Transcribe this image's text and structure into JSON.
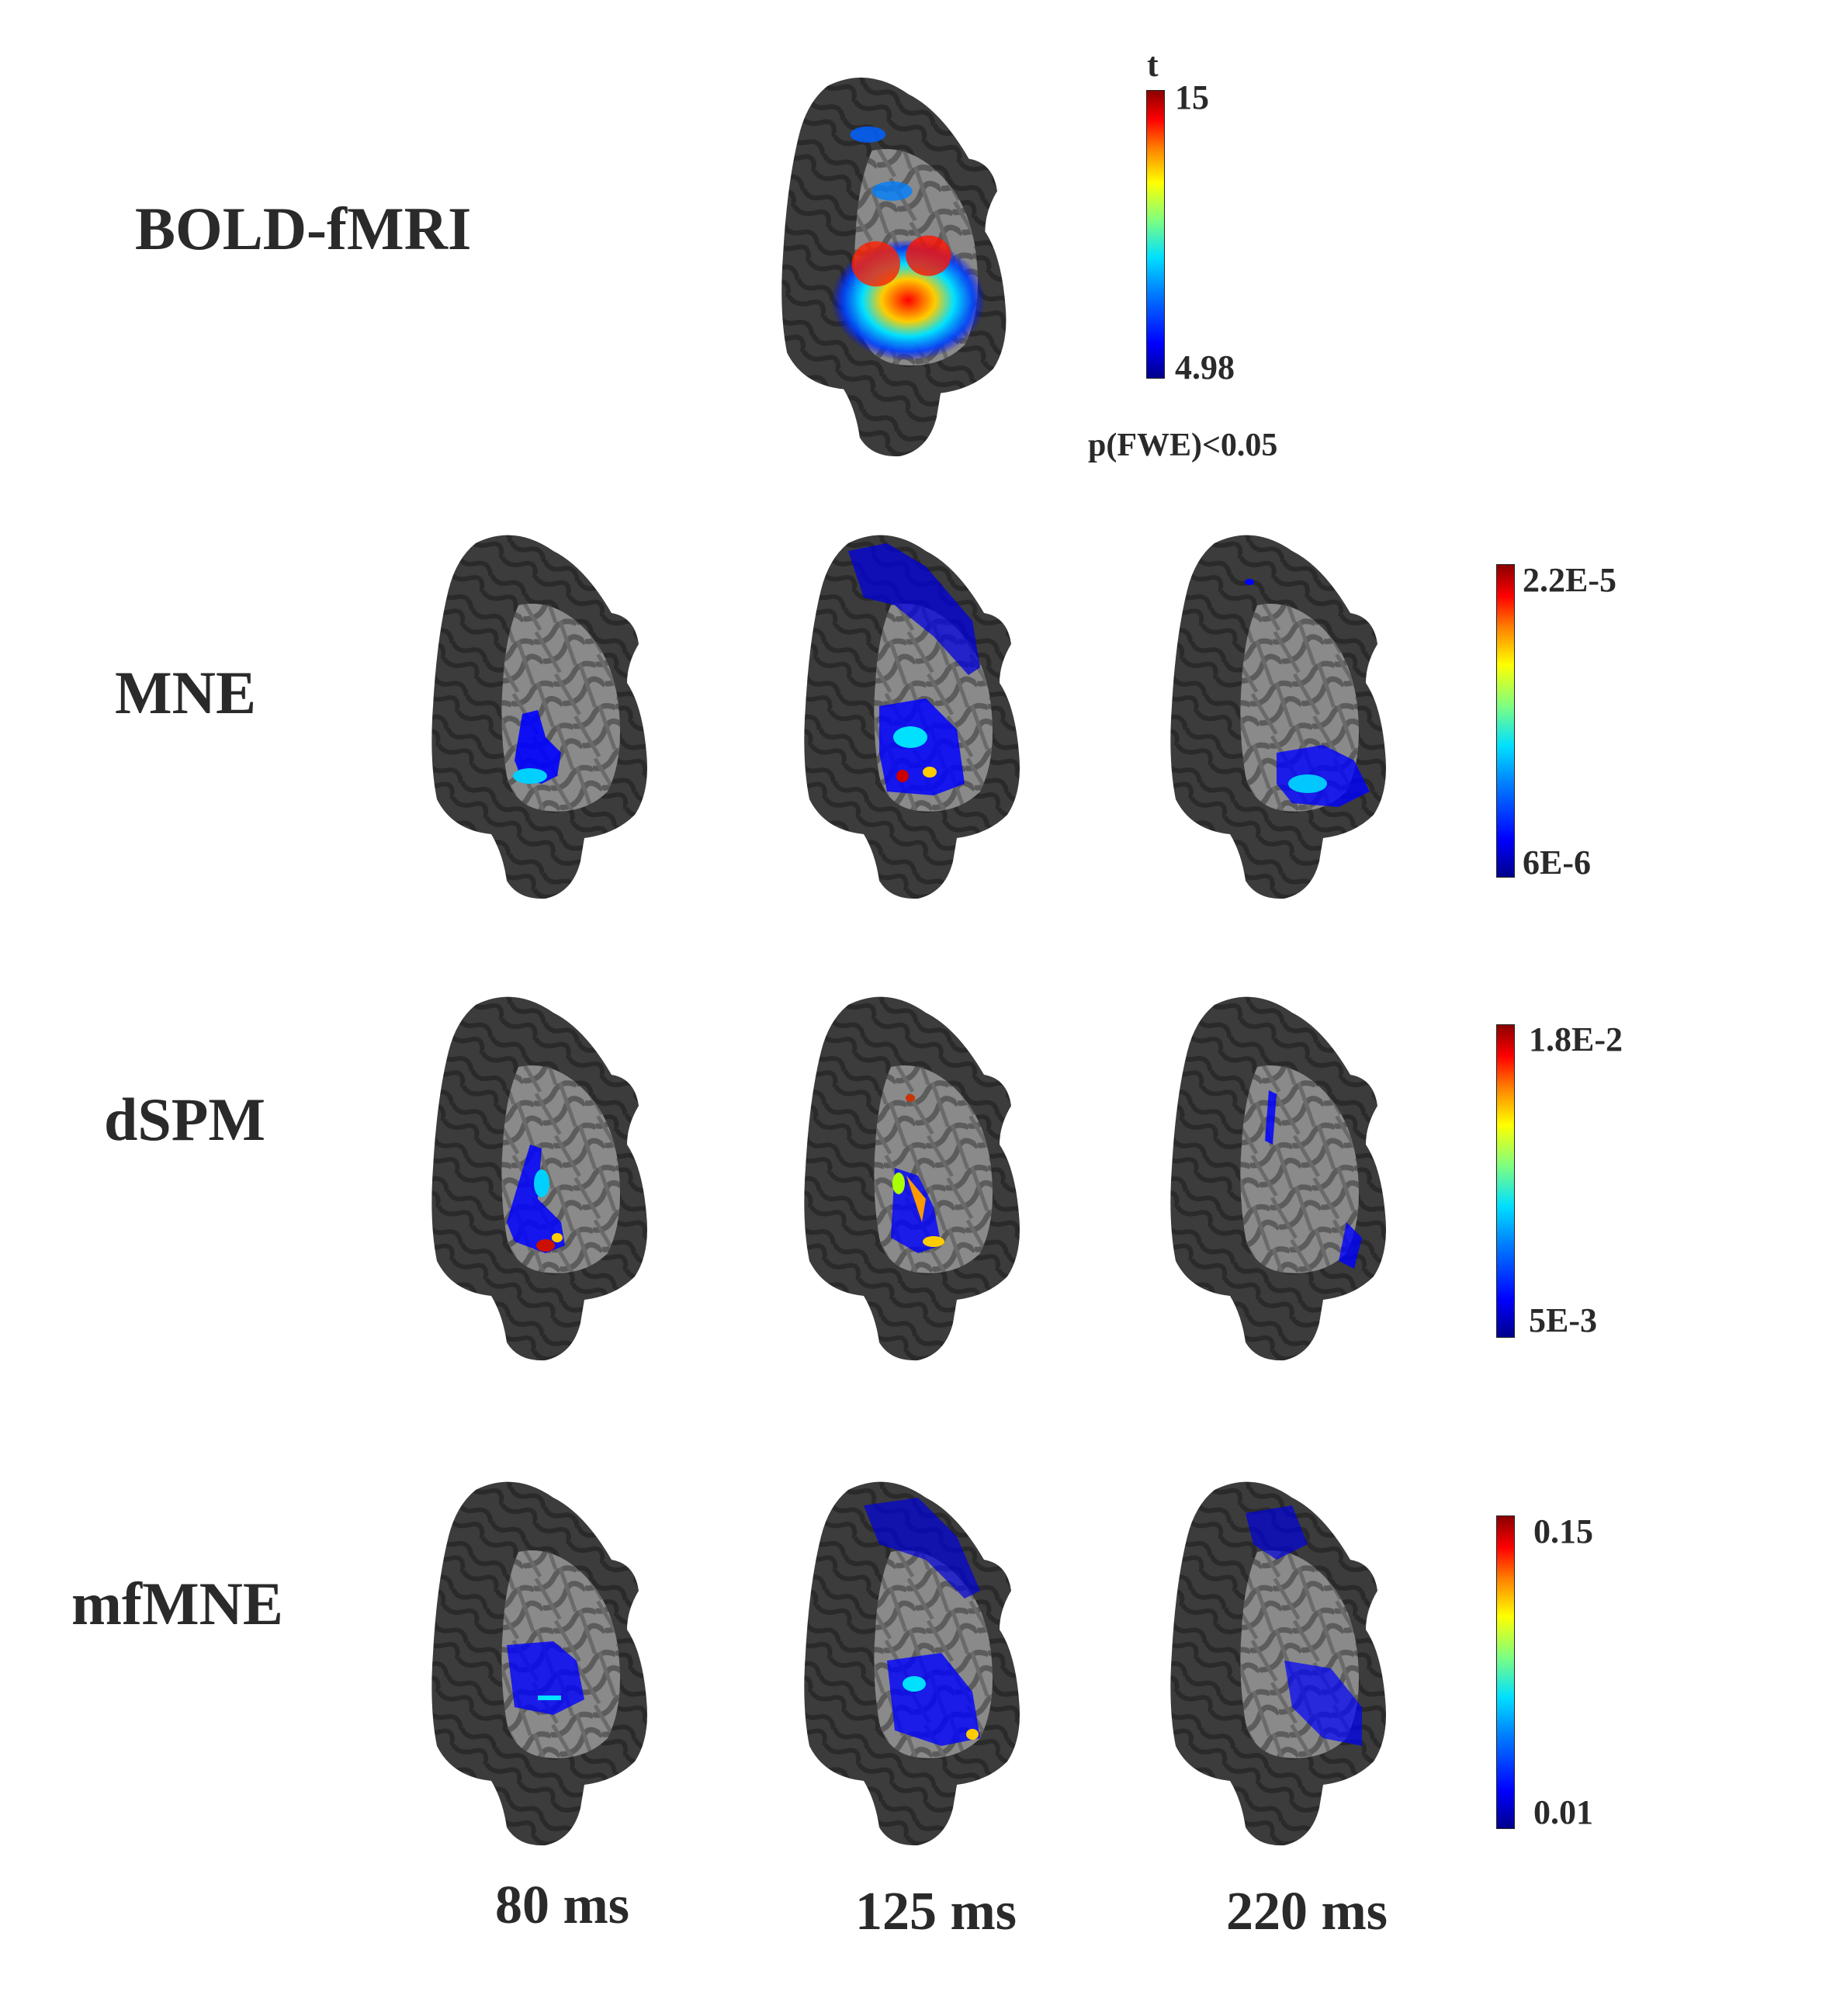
{
  "rows": [
    {
      "label": "BOLD-fMRI"
    },
    {
      "label": "MNE"
    },
    {
      "label": "dSPM"
    },
    {
      "label": "mfMNE"
    }
  ],
  "times": [
    "80 ms",
    "125 ms",
    "220 ms"
  ],
  "colorbars": {
    "bold": {
      "title": "t",
      "max": "15",
      "min": "4.98",
      "note": "p(FWE)<0.05"
    },
    "mne": {
      "max": "2.2E-5",
      "min": "6E-6"
    },
    "dspm": {
      "max": "1.8E-2",
      "min": "5E-3"
    },
    "mfmne": {
      "max": "0.15",
      "min": "0.01"
    }
  },
  "colors": {
    "cortex_dark": "#3a3a3a",
    "cortex_light": "#8c8c8c",
    "activation_low": "#0000ff",
    "activation_high": "#ff0000"
  }
}
